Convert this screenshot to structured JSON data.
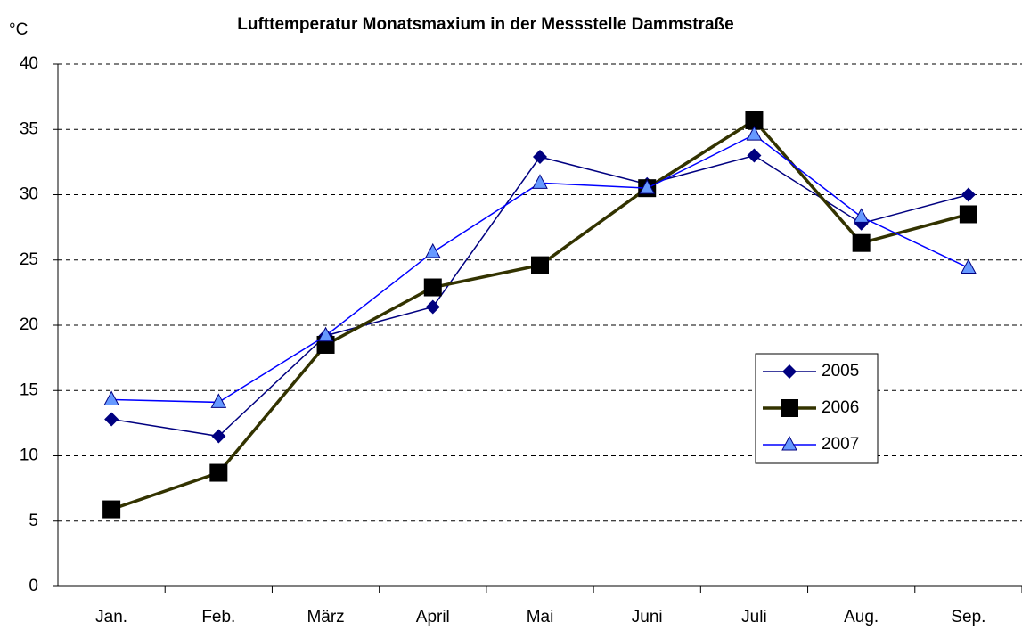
{
  "chart_data": {
    "type": "line",
    "title": "Lufttemperatur Monatsmaxium in der Messstelle Dammstraße",
    "y_label": "°C",
    "categories": [
      "Jan.",
      "Feb.",
      "März",
      "April",
      "Mai",
      "Juni",
      "Juli",
      "Aug.",
      "Sep."
    ],
    "series": [
      {
        "name": "2005",
        "color": "#000080",
        "marker": "diamond",
        "values": [
          12.8,
          11.5,
          19.2,
          21.4,
          32.9,
          30.8,
          33.0,
          27.8,
          30.0
        ]
      },
      {
        "name": "2006",
        "color": "#333300",
        "marker": "square",
        "values": [
          5.9,
          8.7,
          18.5,
          22.9,
          24.6,
          30.5,
          35.7,
          26.3,
          28.5
        ]
      },
      {
        "name": "2007",
        "color": "#0000ff",
        "marker": "triangle",
        "values": [
          14.3,
          14.1,
          19.2,
          25.6,
          30.9,
          30.5,
          34.6,
          28.3,
          24.4
        ]
      }
    ],
    "ylim": [
      0,
      40
    ],
    "yticks": [
      0,
      5,
      10,
      15,
      20,
      25,
      30,
      35,
      40
    ],
    "grid": true
  }
}
